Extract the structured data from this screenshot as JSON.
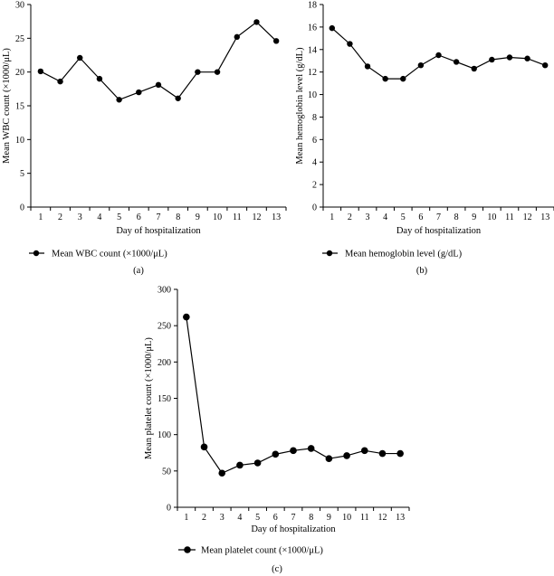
{
  "chart_data": [
    {
      "type": "line",
      "panel_label": "(a)",
      "categories": [
        "1",
        "2",
        "3",
        "4",
        "5",
        "6",
        "7",
        "8",
        "9",
        "10",
        "11",
        "12",
        "13"
      ],
      "series": [
        {
          "name": "Mean WBC count (×1000/μL)",
          "values": [
            20.1,
            18.6,
            22.1,
            19.0,
            15.9,
            17.0,
            18.1,
            16.1,
            20.0,
            20.0,
            25.2,
            27.4,
            24.6
          ]
        }
      ],
      "xlabel": "Day of hospitalization",
      "ylabel": "Mean WBC count (×1000/μL)",
      "ylim": [
        0,
        30
      ],
      "yticks": [
        0,
        5,
        10,
        15,
        20,
        25,
        30
      ],
      "legend_position": "bottom-left"
    },
    {
      "type": "line",
      "panel_label": "(b)",
      "categories": [
        "1",
        "2",
        "3",
        "4",
        "5",
        "6",
        "7",
        "8",
        "9",
        "10",
        "11",
        "12",
        "13"
      ],
      "series": [
        {
          "name": "Mean hemoglobin level (g/dL)",
          "values": [
            15.9,
            14.5,
            12.5,
            11.4,
            11.4,
            12.6,
            13.5,
            12.9,
            12.3,
            13.1,
            13.3,
            13.2,
            12.6
          ]
        }
      ],
      "xlabel": "Day of hospitalization",
      "ylabel": "Mean hemoglobin level (g/dL)",
      "ylim": [
        0,
        18
      ],
      "yticks": [
        0,
        2,
        4,
        6,
        8,
        10,
        12,
        14,
        16,
        18
      ],
      "legend_position": "bottom-left"
    },
    {
      "type": "line",
      "panel_label": "(c)",
      "categories": [
        "1",
        "2",
        "3",
        "4",
        "5",
        "6",
        "7",
        "8",
        "9",
        "10",
        "11",
        "12",
        "13"
      ],
      "series": [
        {
          "name": "Mean platelet count (×1000/μL)",
          "values": [
            262,
            83,
            47,
            58,
            61,
            73,
            78,
            81,
            67,
            71,
            78,
            74,
            74
          ]
        }
      ],
      "xlabel": "Day of hospitalization",
      "ylabel": "Mean platelet count (×1000/μL)",
      "ylim": [
        0,
        300
      ],
      "yticks": [
        0,
        50,
        100,
        150,
        200,
        250,
        300
      ],
      "legend_position": "bottom-left"
    }
  ]
}
